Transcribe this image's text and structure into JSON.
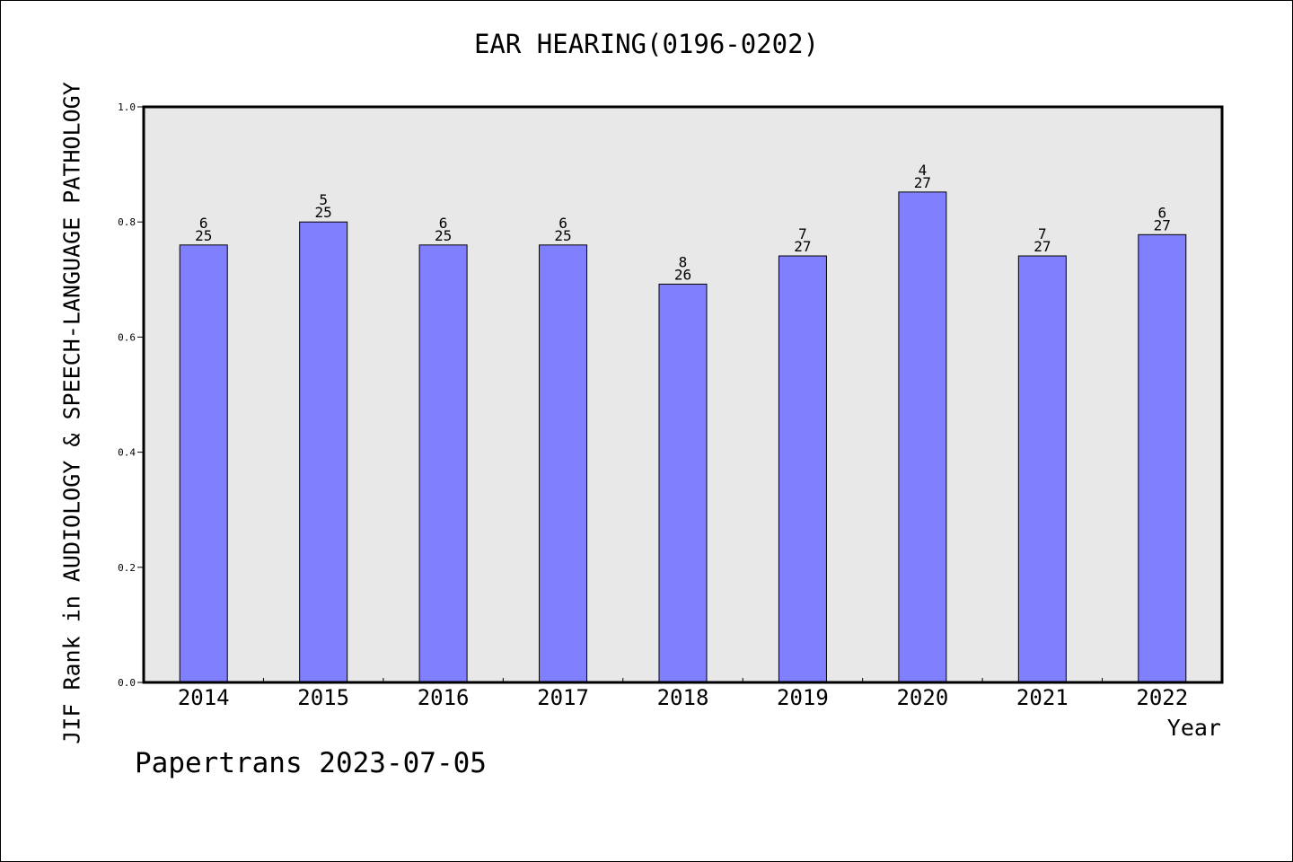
{
  "chart_data": {
    "type": "bar",
    "title": "EAR HEARING(0196-0202)",
    "xlabel": "Year",
    "ylabel": "JIF Rank in AUDIOLOGY & SPEECH-LANGUAGE PATHOLOGY",
    "categories": [
      "2014",
      "2015",
      "2016",
      "2017",
      "2018",
      "2019",
      "2020",
      "2021",
      "2022"
    ],
    "values": [
      0.76,
      0.8,
      0.76,
      0.76,
      0.692,
      0.741,
      0.852,
      0.741,
      0.778
    ],
    "rank": [
      "6",
      "5",
      "6",
      "6",
      "8",
      "7",
      "4",
      "7",
      "6"
    ],
    "total": [
      "25",
      "25",
      "25",
      "25",
      "26",
      "27",
      "27",
      "27",
      "27"
    ],
    "ylim": [
      0,
      1.0
    ],
    "yticks": [
      "0.0",
      "0.2",
      "0.4",
      "0.6",
      "0.8",
      "1.0"
    ],
    "grid": false,
    "bar_color": "#8080ff",
    "plot_bg": "#e8e8e8"
  },
  "footer": "Papertrans 2023-07-05"
}
